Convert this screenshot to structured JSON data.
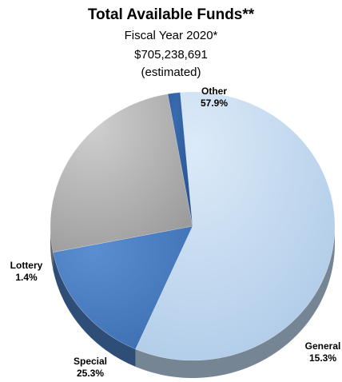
{
  "chart_data": {
    "type": "pie",
    "title": "Total Available Funds**",
    "subtitle_lines": [
      "Fiscal Year 2020*",
      "$705,238,691",
      "(estimated)"
    ],
    "slices": [
      {
        "label": "Other",
        "value": 57.9,
        "value_label": "57.9%",
        "color": "#BDD7EE"
      },
      {
        "label": "General",
        "value": 15.3,
        "value_label": "15.3%",
        "color": "#4A7EC2"
      },
      {
        "label": "Special",
        "value": 25.3,
        "value_label": "25.3%",
        "color": "#A8A8A8"
      },
      {
        "label": "Lottery",
        "value": 1.4,
        "value_label": "1.4%",
        "color": "#2E5E9E"
      }
    ],
    "legend": "none",
    "style": "3d-pie"
  }
}
